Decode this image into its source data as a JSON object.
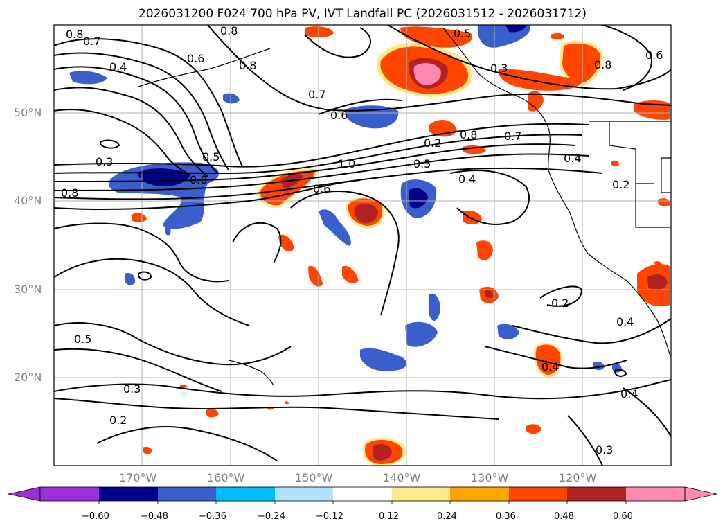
{
  "title": "2026031200 F024 700 hPa PV, IVT Landfall PC (2026031512 - 2026031712)",
  "map": {
    "projection": "Plate Carree",
    "lon_range": [
      -180,
      -110
    ],
    "lat_range": [
      10,
      60
    ],
    "lat_labels": [
      "50°N",
      "40°N",
      "30°N",
      "20°N"
    ],
    "lon_labels": [
      "170°W",
      "160°W",
      "150°W",
      "140°W",
      "130°W",
      "120°W"
    ],
    "grid": true,
    "coastlines": true,
    "contour_color": "#000000"
  },
  "contour_labels": [
    "0.8",
    "0.7",
    "0.8",
    "0.5",
    "0.4",
    "0.6",
    "0.8",
    "0.3",
    "0.8",
    "0.7",
    "0.6",
    "0.6",
    "0.3",
    "0.5",
    "0.8",
    "1.0",
    "0.8",
    "0.7",
    "0.5",
    "0.4",
    "0.4",
    "0.2",
    "0.8",
    "0.6",
    "0.4",
    "0.2",
    "0.4",
    "0.5",
    "0.3",
    "0.2",
    "0.4",
    "0.3",
    "0.2"
  ],
  "colorbar": {
    "tick_labels": [
      "−0.60",
      "−0.48",
      "−0.36",
      "−0.24",
      "−0.12",
      "0.12",
      "0.24",
      "0.36",
      "0.48",
      "0.60"
    ],
    "colors": [
      "#9b30d9",
      "#00008b",
      "#3a5fcd",
      "#00bfff",
      "#b0e2ff",
      "#ffffff",
      "#ffe98a",
      "#ffa500",
      "#ff4500",
      "#b22222",
      "#ff89b0"
    ],
    "extend": "both"
  }
}
